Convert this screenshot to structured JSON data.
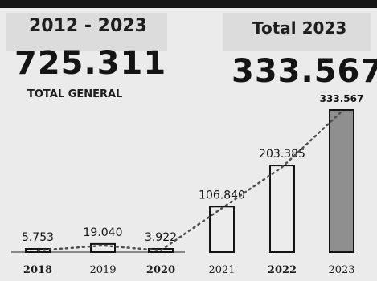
{
  "header": {
    "range_label": "2012 - 2023",
    "grand_total": "725.311",
    "grand_total_caption": "TOTAL GENERAL",
    "year_total_label": "Total 2023",
    "year_total": "333.567"
  },
  "chart_data": {
    "type": "bar",
    "categories": [
      "2018",
      "2019",
      "2020",
      "2021",
      "2022",
      "2023"
    ],
    "values": [
      5753,
      19040,
      3922,
      106840,
      203385,
      333567
    ],
    "value_labels": [
      "5.753",
      "19.040",
      "3.922",
      "106.840",
      "203.385",
      "333.567"
    ],
    "title": "",
    "xlabel": "",
    "ylabel": "",
    "ylim": [
      0,
      333567
    ],
    "grid": false,
    "legend": "none",
    "trendline": true,
    "colors": {
      "bar_fill": "#ececec",
      "bar_highlight": "#8f8f8f",
      "bar_stroke": "#141414",
      "trend": "#505050"
    }
  }
}
